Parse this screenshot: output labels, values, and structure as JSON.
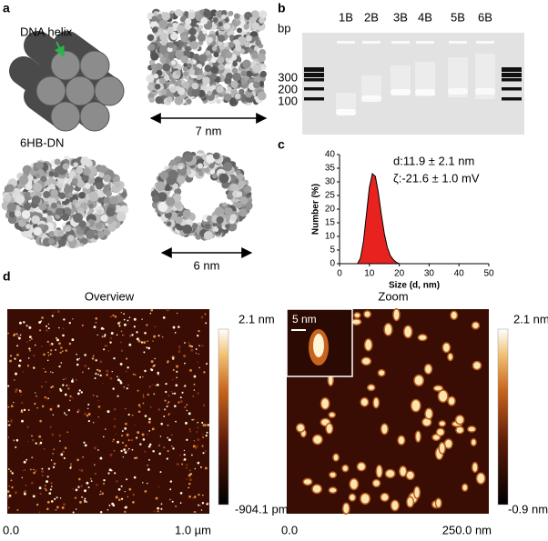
{
  "panel_labels": [
    "a",
    "b",
    "c",
    "d"
  ],
  "panel_a": {
    "helix_label": "DNA helix",
    "name": "6HB-DN",
    "length": "7 nm",
    "width": "6 nm"
  },
  "panel_b": {
    "unit": "bp",
    "lanes": [
      "1B",
      "2B",
      "3B",
      "4B",
      "5B",
      "6B"
    ],
    "ladder": [
      300,
      200,
      100
    ]
  },
  "chart_data": {
    "type": "area",
    "x_label": "Size (d, nm)",
    "y_label": "Number (%)",
    "annotations": [
      "d:11.9 ± 2.1 nm",
      "ζ:-21.6 ± 1.0 mV"
    ],
    "series": [
      {
        "color": "#e8231f",
        "x": [
          6,
          7,
          8,
          9,
          10,
          11,
          12,
          13,
          14,
          15,
          16,
          17,
          18,
          19,
          20
        ],
        "values": [
          0,
          2,
          8,
          18,
          28,
          33,
          32,
          26,
          18,
          11,
          6,
          3,
          1.5,
          0.5,
          0
        ]
      }
    ],
    "xlim": [
      0,
      50
    ],
    "xticks": [
      0,
      10,
      20,
      30,
      40,
      50
    ],
    "ylim": [
      0,
      40
    ],
    "yticks": [
      0,
      5,
      10,
      15,
      20,
      25,
      30,
      35,
      40
    ]
  },
  "panel_d": {
    "overview": {
      "title": "Overview",
      "scale_max": "2.1 nm",
      "scale_min": "-904.1 pm",
      "axis_start": "0.0",
      "axis_end": "1.0 µm"
    },
    "zoom": {
      "title": "Zoom",
      "scale_max": "2.1 nm",
      "scale_min": "-0.9 nm",
      "axis_start": "0.0",
      "axis_end": "250.0 nm",
      "inset_scale": "5 nm"
    }
  }
}
